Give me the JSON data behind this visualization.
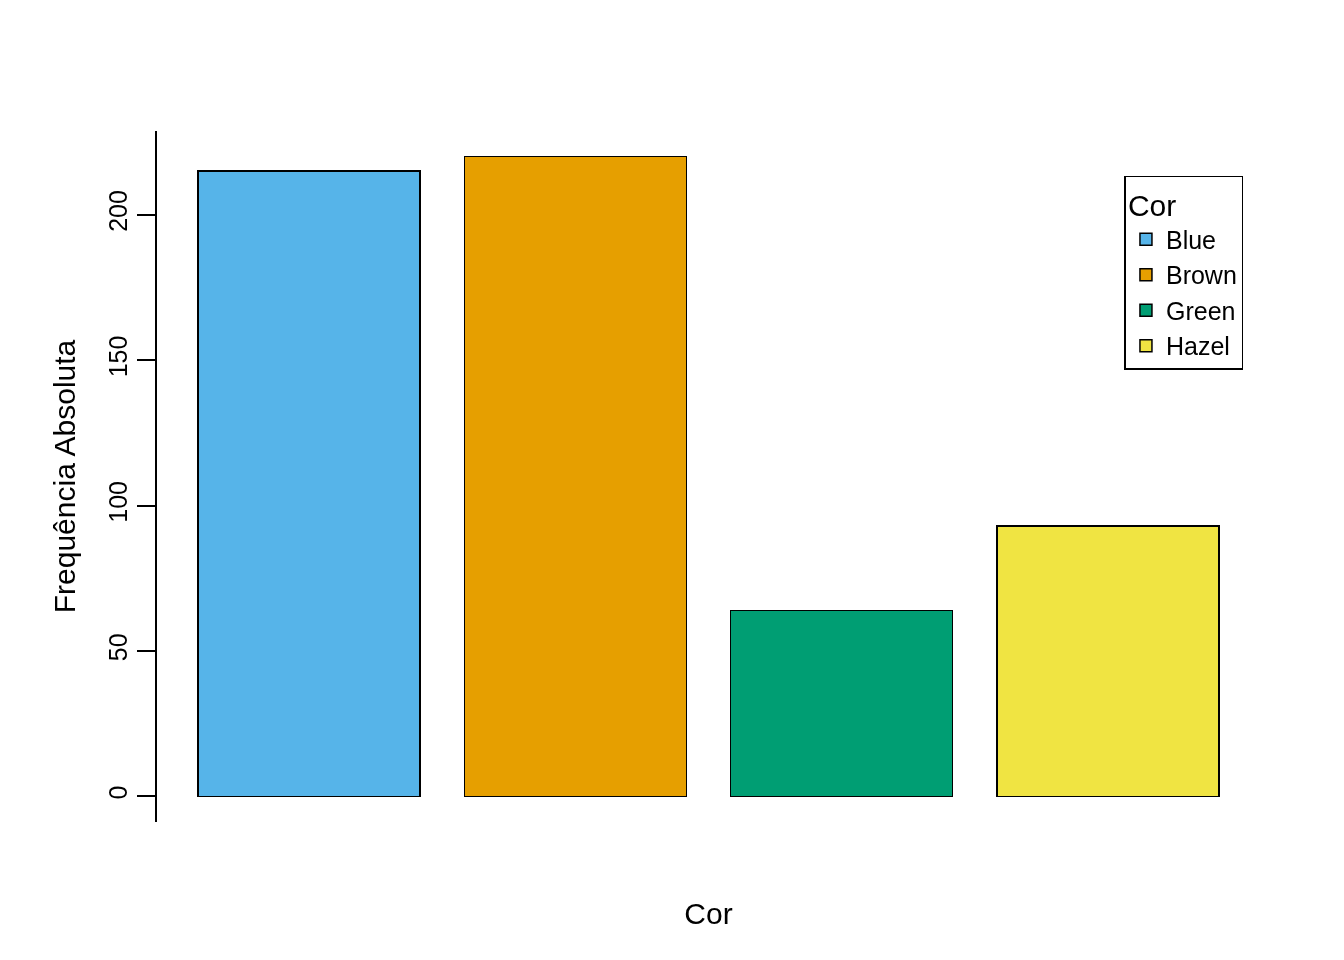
{
  "chart_data": {
    "type": "bar",
    "xlabel": "Cor",
    "ylabel": "Frequência Absoluta",
    "legend_title": "Cor",
    "categories": [
      null,
      null,
      null,
      null
    ],
    "stacked": true,
    "series": [
      {
        "name": "Blue",
        "color": "#56b4e9",
        "values": [
          215,
          null,
          null,
          null
        ]
      },
      {
        "name": "Brown",
        "color": "#e69f00",
        "values": [
          null,
          220,
          null,
          null
        ]
      },
      {
        "name": "Green",
        "color": "#009e73",
        "values": [
          null,
          null,
          64,
          null
        ]
      },
      {
        "name": "Hazel",
        "color": "#f0e442",
        "values": [
          null,
          null,
          null,
          93
        ]
      }
    ],
    "ylim": [
      -8.8,
      228.8
    ],
    "yticks": [
      0,
      50,
      100,
      150,
      200
    ],
    "tick_labels": "y",
    "legend": "top right"
  }
}
